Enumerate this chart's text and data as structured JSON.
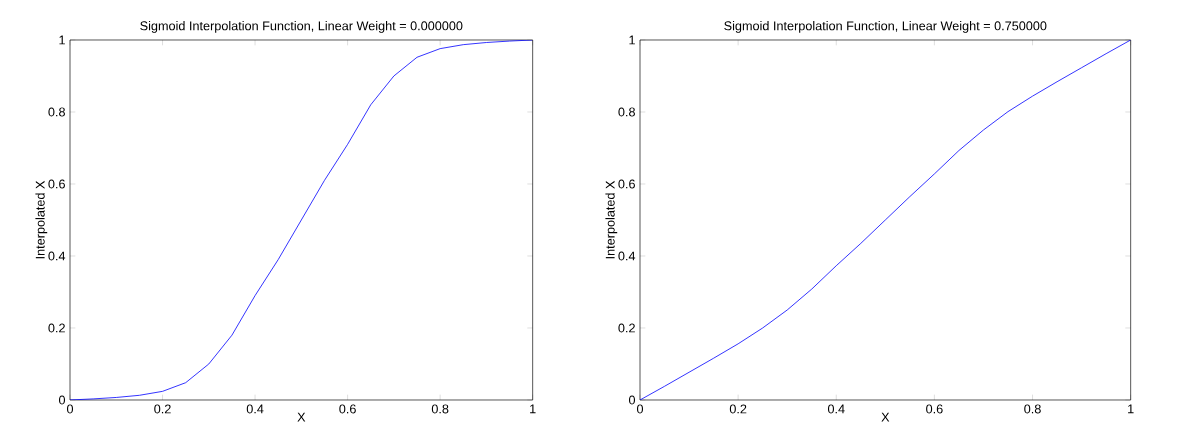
{
  "chart_data": [
    {
      "type": "line",
      "title": "Sigmoid Interpolation Function, Linear Weight = 0.000000",
      "xlabel": "X",
      "ylabel": "Interpolated X",
      "x": [
        0,
        0.05,
        0.1,
        0.15,
        0.2,
        0.25,
        0.3,
        0.35,
        0.4,
        0.45,
        0.5,
        0.55,
        0.6,
        0.65,
        0.7,
        0.75,
        0.8,
        0.85,
        0.9,
        0.95,
        1
      ],
      "series": [
        {
          "color": "#0000ff",
          "values": [
            0,
            0.003,
            0.007,
            0.013,
            0.024,
            0.048,
            0.1,
            0.18,
            0.29,
            0.39,
            0.5,
            0.61,
            0.71,
            0.82,
            0.9,
            0.952,
            0.976,
            0.987,
            0.993,
            0.997,
            1
          ]
        }
      ],
      "xlim": [
        0,
        1
      ],
      "ylim": [
        0,
        1
      ],
      "xticks": [
        0,
        0.2,
        0.4,
        0.6,
        0.8,
        1
      ],
      "yticks": [
        0,
        0.2,
        0.4,
        0.6,
        0.8,
        1
      ],
      "grid": false,
      "marker": "none",
      "line_style": "solid"
    },
    {
      "type": "line",
      "title": "Sigmoid Interpolation Function, Linear Weight = 0.750000",
      "xlabel": "X",
      "ylabel": "Interpolated X",
      "x": [
        0,
        0.05,
        0.1,
        0.15,
        0.2,
        0.25,
        0.3,
        0.35,
        0.4,
        0.45,
        0.5,
        0.55,
        0.6,
        0.65,
        0.7,
        0.75,
        0.8,
        0.85,
        0.9,
        0.95,
        1
      ],
      "series": [
        {
          "color": "#0000ff",
          "values": [
            0,
            0.038,
            0.077,
            0.116,
            0.156,
            0.2,
            0.25,
            0.308,
            0.373,
            0.435,
            0.5,
            0.565,
            0.628,
            0.693,
            0.75,
            0.801,
            0.844,
            0.884,
            0.923,
            0.962,
            1
          ]
        }
      ],
      "xlim": [
        0,
        1
      ],
      "ylim": [
        0,
        1
      ],
      "xticks": [
        0,
        0.2,
        0.4,
        0.6,
        0.8,
        1
      ],
      "yticks": [
        0,
        0.2,
        0.4,
        0.6,
        0.8,
        1
      ],
      "grid": false,
      "marker": "none",
      "line_style": "solid"
    }
  ]
}
